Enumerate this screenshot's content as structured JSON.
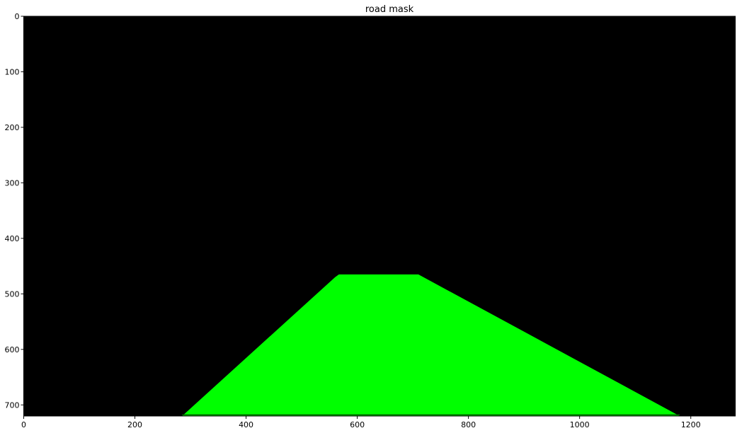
{
  "chart_data": {
    "type": "image",
    "title": "road mask",
    "xlabel": "",
    "ylabel": "",
    "xlim": [
      0,
      1280
    ],
    "ylim": [
      720,
      0
    ],
    "x_ticks": [
      0,
      200,
      400,
      600,
      800,
      1000,
      1200
    ],
    "y_ticks": [
      0,
      100,
      200,
      300,
      400,
      500,
      600,
      700
    ],
    "background_color": "#000000",
    "mask_color": "#00ff00",
    "grid": false,
    "mask_polygon": [
      [
        285,
        720
      ],
      [
        560,
        470
      ],
      [
        567,
        465
      ],
      [
        710,
        465
      ],
      [
        1180,
        720
      ]
    ],
    "bottom_line": {
      "y": 718,
      "x_range": [
        285,
        1180
      ]
    }
  }
}
